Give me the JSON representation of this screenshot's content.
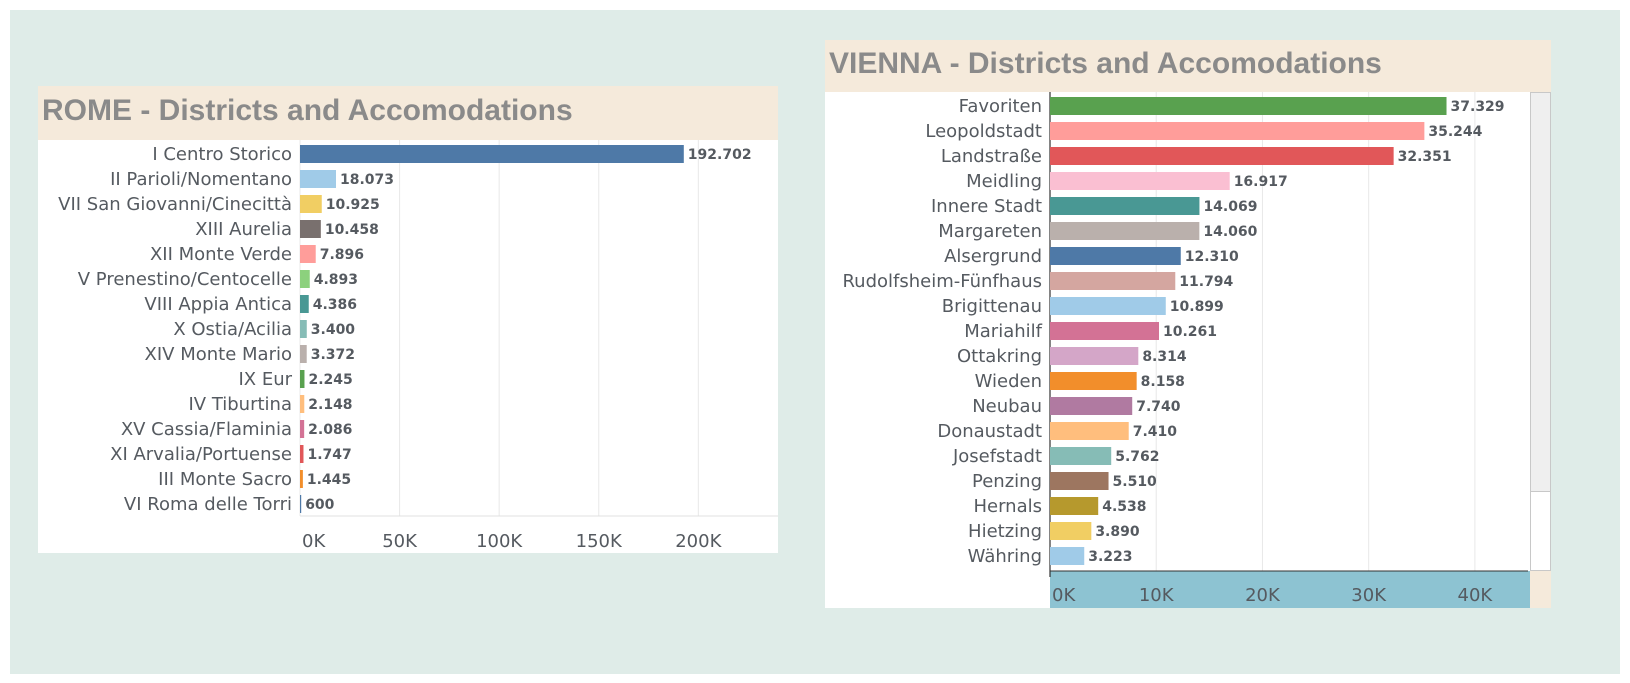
{
  "chart_data": [
    {
      "type": "bar",
      "orientation": "horizontal",
      "title": "ROME - Districts and Accomodations",
      "categories": [
        "I Centro Storico",
        "II Parioli/Nomentano",
        "VII San Giovanni/Cinecittà",
        "XIII Aurelia",
        "XII Monte Verde",
        "V Prenestino/Centocelle",
        "VIII Appia Antica",
        "X Ostia/Acilia",
        "XIV Monte Mario",
        "IX Eur",
        "IV Tiburtina",
        "XV Cassia/Flaminia",
        "XI Arvalia/Portuense",
        "III Monte Sacro",
        "VI Roma delle Torri"
      ],
      "values": [
        192702,
        18073,
        10925,
        10458,
        7896,
        4893,
        4386,
        3400,
        3372,
        2245,
        2148,
        2086,
        1747,
        1445,
        600
      ],
      "value_labels": [
        "192.702",
        "18.073",
        "10.925",
        "10.458",
        "7.896",
        "4.893",
        "4.386",
        "3.400",
        "3.372",
        "2.245",
        "2.148",
        "2.086",
        "1.747",
        "1.445",
        "600"
      ],
      "colors": [
        "#4e79a7",
        "#a0cbe8",
        "#f1ce63",
        "#79706e",
        "#ff9d9a",
        "#8cd17d",
        "#499894",
        "#86bcb6",
        "#bab0ac",
        "#59a14f",
        "#ffbe7d",
        "#d37295",
        "#e15759",
        "#f28e2b",
        "#4e79a7"
      ],
      "xticks": [
        0,
        50000,
        100000,
        150000,
        200000
      ],
      "xtick_labels": [
        "0K",
        "50K",
        "100K",
        "150K",
        "200K"
      ],
      "xlim": [
        0,
        240000
      ],
      "grid": true
    },
    {
      "type": "bar",
      "orientation": "horizontal",
      "title": "VIENNA - Districts and Accomodations",
      "categories": [
        "Favoriten",
        "Leopoldstadt",
        "Landstraße",
        "Meidling",
        "Innere Stadt",
        "Margareten",
        "Alsergrund",
        "Rudolfsheim-Fünfhaus",
        "Brigittenau",
        "Mariahilf",
        "Ottakring",
        "Wieden",
        "Neubau",
        "Donaustadt",
        "Josefstadt",
        "Penzing",
        "Hernals",
        "Hietzing",
        "Währing"
      ],
      "values": [
        37329,
        35244,
        32351,
        16917,
        14069,
        14060,
        12310,
        11794,
        10899,
        10261,
        8314,
        8158,
        7740,
        7410,
        5762,
        5510,
        4538,
        3890,
        3223
      ],
      "value_labels": [
        "37.329",
        "35.244",
        "32.351",
        "16.917",
        "14.069",
        "14.060",
        "12.310",
        "11.794",
        "10.899",
        "10.261",
        "8.314",
        "8.158",
        "7.740",
        "7.410",
        "5.762",
        "5.510",
        "4.538",
        "3.890",
        "3.223"
      ],
      "colors": [
        "#59a14f",
        "#ff9d9a",
        "#e15759",
        "#fabfd2",
        "#499894",
        "#bab0ac",
        "#4e79a7",
        "#d4a6a0",
        "#a0cbe8",
        "#d37295",
        "#d4a6c8",
        "#f28e2b",
        "#b07aa1",
        "#ffbe7d",
        "#86bcb6",
        "#9d7660",
        "#b6992d",
        "#f1ce63",
        "#a0cbe8"
      ],
      "xticks": [
        0,
        10000,
        20000,
        30000,
        40000
      ],
      "xtick_labels": [
        "0K",
        "10K",
        "20K",
        "30K",
        "40K"
      ],
      "xlim": [
        0,
        45000
      ],
      "grid": true
    }
  ]
}
